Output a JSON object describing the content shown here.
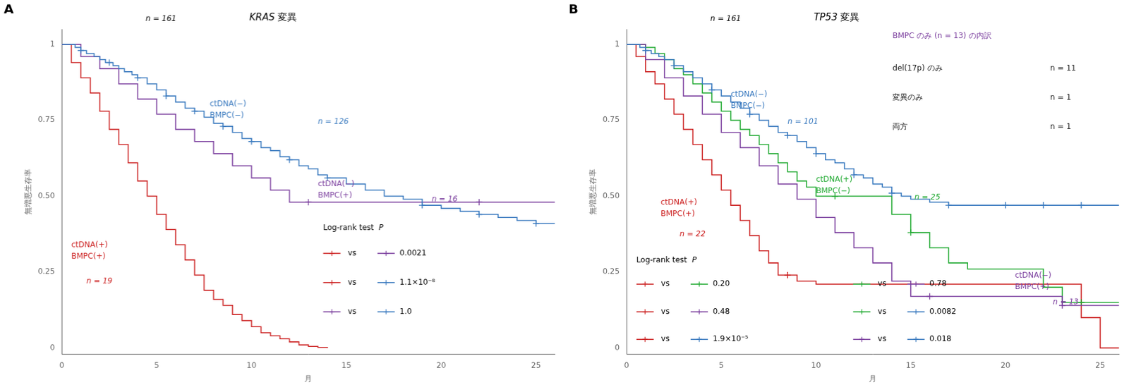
{
  "chart_data": [
    {
      "type": "step",
      "panel_label": "A",
      "title": "KRAS 変異",
      "subtitle": "n = 161",
      "x_label": "月",
      "y_label": "無増悪生存率",
      "xlim": [
        0,
        26
      ],
      "ylim": [
        -0.02,
        1.05
      ],
      "xticks": [
        0,
        5,
        10,
        15,
        20,
        25
      ],
      "yticks": [
        0,
        0.25,
        {
          "value": 0.5,
          "label": "0.50"
        },
        0.75,
        1
      ],
      "grid": false,
      "background": "#ffffff",
      "series": [
        {
          "label_lines": [
            "ctDNA(−)",
            "BMPC(−)"
          ],
          "label_at": [
            7.8,
            0.785
          ],
          "n_label": "n = 126",
          "n_label_at": [
            13.5,
            0.745
          ],
          "color": "#3a7abf",
          "x": [
            0,
            0.3,
            0.7,
            1.0,
            1.3,
            1.7,
            2.0,
            2.3,
            2.7,
            3.0,
            3.3,
            3.7,
            4.0,
            4.5,
            5.0,
            5.5,
            6.0,
            6.5,
            7.0,
            7.5,
            8.0,
            8.5,
            9.0,
            9.5,
            10.0,
            10.5,
            11.0,
            11.5,
            12.0,
            12.5,
            13.0,
            13.5,
            14.0,
            15.0,
            16.0,
            17.0,
            18.0,
            19.0,
            20.0,
            21.0,
            22.0,
            23.0,
            24.0,
            25.0,
            26.0
          ],
          "values": [
            1.0,
            1.0,
            0.99,
            0.98,
            0.97,
            0.96,
            0.95,
            0.94,
            0.93,
            0.92,
            0.91,
            0.9,
            0.89,
            0.87,
            0.85,
            0.83,
            0.81,
            0.79,
            0.78,
            0.76,
            0.74,
            0.73,
            0.71,
            0.69,
            0.68,
            0.66,
            0.65,
            0.63,
            0.62,
            0.6,
            0.59,
            0.57,
            0.56,
            0.54,
            0.52,
            0.5,
            0.49,
            0.47,
            0.46,
            0.45,
            0.44,
            0.43,
            0.42,
            0.41,
            0.41
          ],
          "censor_x": [
            1.0,
            2.5,
            4.0,
            5.5,
            7.0,
            8.5,
            10.0,
            12.0,
            14.0,
            19.0,
            22.0,
            25.0
          ],
          "censor_values": [
            0.98,
            0.94,
            0.89,
            0.83,
            0.78,
            0.73,
            0.68,
            0.62,
            0.56,
            0.47,
            0.44,
            0.41
          ]
        },
        {
          "label_lines": [
            "ctDNA(−)",
            "BMPC(+)"
          ],
          "label_at": [
            13.5,
            0.52
          ],
          "n_label": "n = 16",
          "n_label_at": [
            19.5,
            0.49
          ],
          "color": "#7b3f9e",
          "x": [
            0,
            1,
            2,
            3,
            4,
            5,
            6,
            7,
            8,
            9,
            10,
            11,
            12,
            13,
            14,
            15,
            16,
            17,
            18,
            19,
            20,
            21,
            22,
            23,
            24,
            25,
            26
          ],
          "values": [
            1.0,
            0.96,
            0.92,
            0.87,
            0.82,
            0.77,
            0.72,
            0.68,
            0.64,
            0.6,
            0.56,
            0.52,
            0.48,
            0.48,
            0.48,
            0.48,
            0.48,
            0.48,
            0.48,
            0.48,
            0.48,
            0.48,
            0.48,
            0.48,
            0.48,
            0.48,
            0.48
          ],
          "censor_x": [
            13,
            22
          ],
          "censor_values": [
            0.48,
            0.48
          ]
        },
        {
          "label_lines": [
            "ctDNA(+)",
            "BMPC(+)"
          ],
          "label_at": [
            0.5,
            0.32
          ],
          "n_label": "n = 19",
          "n_label_at": [
            1.3,
            0.22
          ],
          "color": "#cc2222",
          "x": [
            0,
            0.5,
            1.0,
            1.5,
            2.0,
            2.5,
            3.0,
            3.5,
            4.0,
            4.5,
            5.0,
            5.5,
            6.0,
            6.5,
            7.0,
            7.5,
            8.0,
            8.5,
            9.0,
            9.5,
            10.0,
            10.5,
            11.0,
            11.5,
            12.0,
            12.5,
            13.0,
            13.5,
            14.0
          ],
          "values": [
            1.0,
            0.94,
            0.89,
            0.84,
            0.78,
            0.72,
            0.67,
            0.61,
            0.55,
            0.5,
            0.44,
            0.39,
            0.34,
            0.29,
            0.24,
            0.19,
            0.16,
            0.14,
            0.11,
            0.09,
            0.07,
            0.05,
            0.04,
            0.03,
            0.02,
            0.01,
            0.005,
            0.002,
            0.0
          ],
          "censor_x": [],
          "censor_values": []
        }
      ],
      "logrank": {
        "title": "Log-rank test",
        "p_label": "P",
        "joiner": "vs",
        "rows": [
          {
            "colors": [
              "#cc2222",
              "#7b3f9e"
            ],
            "p": "0.0021"
          },
          {
            "colors": [
              "#cc2222",
              "#3a7abf"
            ],
            "p": "1.1×10⁻⁸"
          },
          {
            "colors": [
              "#7b3f9e",
              "#3a7abf"
            ],
            "p": "1.0"
          }
        ]
      }
    },
    {
      "type": "step",
      "panel_label": "B",
      "title": "TP53 変異",
      "subtitle": "n = 161",
      "x_label": "月",
      "y_label": "無増悪生存率",
      "xlim": [
        0,
        26
      ],
      "ylim": [
        -0.02,
        1.05
      ],
      "xticks": [
        0,
        5,
        10,
        15,
        20,
        25
      ],
      "yticks": [
        0,
        0.25,
        {
          "value": 0.5,
          "label": "0.50"
        },
        0.75,
        1
      ],
      "grid": false,
      "background": "#ffffff",
      "series": [
        {
          "label_lines": [
            "ctDNA(−)",
            "BMPC(−)"
          ],
          "label_at": [
            5.5,
            0.815
          ],
          "n_label": "n = 101",
          "n_label_at": [
            8.5,
            0.745
          ],
          "color": "#3a7abf",
          "x": [
            0,
            0.3,
            0.7,
            1.0,
            1.3,
            1.7,
            2.0,
            2.5,
            3.0,
            3.5,
            4.0,
            4.5,
            5.0,
            5.5,
            6.0,
            6.5,
            7.0,
            7.5,
            8.0,
            8.5,
            9.0,
            9.5,
            10.0,
            10.5,
            11.0,
            11.5,
            12.0,
            12.5,
            13.0,
            13.5,
            14.0,
            14.5,
            15.0,
            16.0,
            17.0,
            18.0,
            19.0,
            20.0,
            21.0,
            22.0,
            23.0,
            24.0,
            25.0,
            26.0
          ],
          "values": [
            1.0,
            1.0,
            0.99,
            0.98,
            0.97,
            0.96,
            0.95,
            0.93,
            0.91,
            0.89,
            0.87,
            0.85,
            0.83,
            0.81,
            0.79,
            0.77,
            0.75,
            0.73,
            0.71,
            0.7,
            0.68,
            0.66,
            0.64,
            0.62,
            0.61,
            0.59,
            0.57,
            0.56,
            0.54,
            0.53,
            0.51,
            0.5,
            0.49,
            0.48,
            0.47,
            0.47,
            0.47,
            0.47,
            0.47,
            0.47,
            0.47,
            0.47,
            0.47,
            0.47
          ],
          "censor_x": [
            1.0,
            2.5,
            4.5,
            6.5,
            8.5,
            10.0,
            12.0,
            14.0,
            17.0,
            20.0,
            22.0,
            24.0
          ],
          "censor_values": [
            0.98,
            0.93,
            0.85,
            0.77,
            0.7,
            0.64,
            0.57,
            0.51,
            0.47,
            0.47,
            0.47,
            0.47
          ]
        },
        {
          "label_lines": [
            "ctDNA(−)",
            "BMPC(+)"
          ],
          "label_at": [
            20.5,
            0.22
          ],
          "n_label": "n = 13",
          "n_label_at": [
            22.5,
            0.15
          ],
          "color": "#7b3f9e",
          "x": [
            0,
            1,
            2,
            3,
            4,
            5,
            6,
            7,
            8,
            9,
            10,
            11,
            12,
            13,
            14,
            15,
            16,
            17,
            18,
            19,
            20,
            21,
            22,
            23,
            24,
            25,
            26
          ],
          "values": [
            1.0,
            0.95,
            0.89,
            0.83,
            0.77,
            0.71,
            0.66,
            0.6,
            0.54,
            0.49,
            0.43,
            0.38,
            0.33,
            0.28,
            0.22,
            0.17,
            0.17,
            0.17,
            0.17,
            0.17,
            0.17,
            0.17,
            0.17,
            0.14,
            0.14,
            0.14,
            0.14
          ],
          "censor_x": [
            16,
            23
          ],
          "censor_values": [
            0.17,
            0.14
          ]
        },
        {
          "label_lines": [
            "ctDNA(+)",
            "BMPC(−)"
          ],
          "label_at": [
            10.0,
            0.535
          ],
          "n_label": "n = 25",
          "n_label_at": [
            15.2,
            0.495
          ],
          "color": "#22aa33",
          "x": [
            0,
            0.5,
            1.0,
            1.5,
            2.0,
            2.5,
            3.0,
            3.5,
            4.0,
            4.5,
            5.0,
            5.5,
            6.0,
            6.5,
            7.0,
            7.5,
            8.0,
            8.5,
            9.0,
            9.5,
            10.0,
            10.5,
            11.0,
            11.5,
            12.0,
            13.0,
            14.0,
            15.0,
            16.0,
            17.0,
            18.0,
            19.0,
            20.0,
            21.0,
            22.0,
            23.0,
            24.0,
            25.0,
            26.0
          ],
          "values": [
            1.0,
            1.0,
            0.99,
            0.97,
            0.95,
            0.92,
            0.9,
            0.87,
            0.84,
            0.81,
            0.78,
            0.75,
            0.72,
            0.7,
            0.67,
            0.64,
            0.61,
            0.58,
            0.55,
            0.53,
            0.5,
            0.5,
            0.5,
            0.5,
            0.5,
            0.5,
            0.44,
            0.38,
            0.33,
            0.28,
            0.26,
            0.26,
            0.26,
            0.26,
            0.2,
            0.15,
            0.15,
            0.15,
            0.15
          ],
          "censor_x": [
            11.0,
            15.0,
            24.0
          ],
          "censor_values": [
            0.5,
            0.38,
            0.15
          ]
        },
        {
          "label_lines": [
            "ctDNA(+)",
            "BMPC(+)"
          ],
          "label_at": [
            1.8,
            0.46
          ],
          "n_label": "n = 22",
          "n_label_at": [
            2.8,
            0.375
          ],
          "color": "#cc2222",
          "x": [
            0,
            0.5,
            1.0,
            1.5,
            2.0,
            2.5,
            3.0,
            3.5,
            4.0,
            4.5,
            5.0,
            5.5,
            6.0,
            6.5,
            7.0,
            7.5,
            8.0,
            9.0,
            10.0,
            11.0,
            12.0,
            13.0,
            14.0,
            15.0,
            16.0,
            17.0,
            18.0,
            19.0,
            20.0,
            21.0,
            22.0,
            23.0,
            24.0,
            25.0,
            26.0
          ],
          "values": [
            1.0,
            0.96,
            0.91,
            0.87,
            0.82,
            0.77,
            0.72,
            0.67,
            0.62,
            0.57,
            0.52,
            0.47,
            0.42,
            0.37,
            0.32,
            0.28,
            0.24,
            0.22,
            0.21,
            0.21,
            0.21,
            0.21,
            0.21,
            0.21,
            0.21,
            0.21,
            0.21,
            0.21,
            0.21,
            0.21,
            0.21,
            0.21,
            0.1,
            0.0,
            0.0
          ],
          "censor_x": [
            8.5
          ],
          "censor_values": [
            0.24
          ]
        }
      ],
      "logrank": {
        "title": "Log-rank test",
        "p_label": "P",
        "joiner": "vs",
        "rows": [
          {
            "colors": [
              "#cc2222",
              "#22aa33"
            ],
            "p": "0.20"
          },
          {
            "colors": [
              "#cc2222",
              "#7b3f9e"
            ],
            "p": "0.48"
          },
          {
            "colors": [
              "#cc2222",
              "#3a7abf"
            ],
            "p": "1.9×10⁻⁵"
          },
          {
            "colors": [
              "#22aa33",
              "#7b3f9e"
            ],
            "p": "0.78"
          },
          {
            "colors": [
              "#22aa33",
              "#3a7abf"
            ],
            "p": "0.0082"
          },
          {
            "colors": [
              "#7b3f9e",
              "#3a7abf"
            ],
            "p": "0.018"
          }
        ]
      },
      "note": {
        "title": "BMPC のみ (n = 13) の内訳",
        "color": "#7b3f9e",
        "rows_color": "#222222",
        "rows": [
          {
            "label": "del(17p) のみ",
            "n": "n = 11"
          },
          {
            "label": "変異のみ",
            "n": "n = 1"
          },
          {
            "label": "両方",
            "n": "n = 1"
          }
        ]
      }
    }
  ]
}
